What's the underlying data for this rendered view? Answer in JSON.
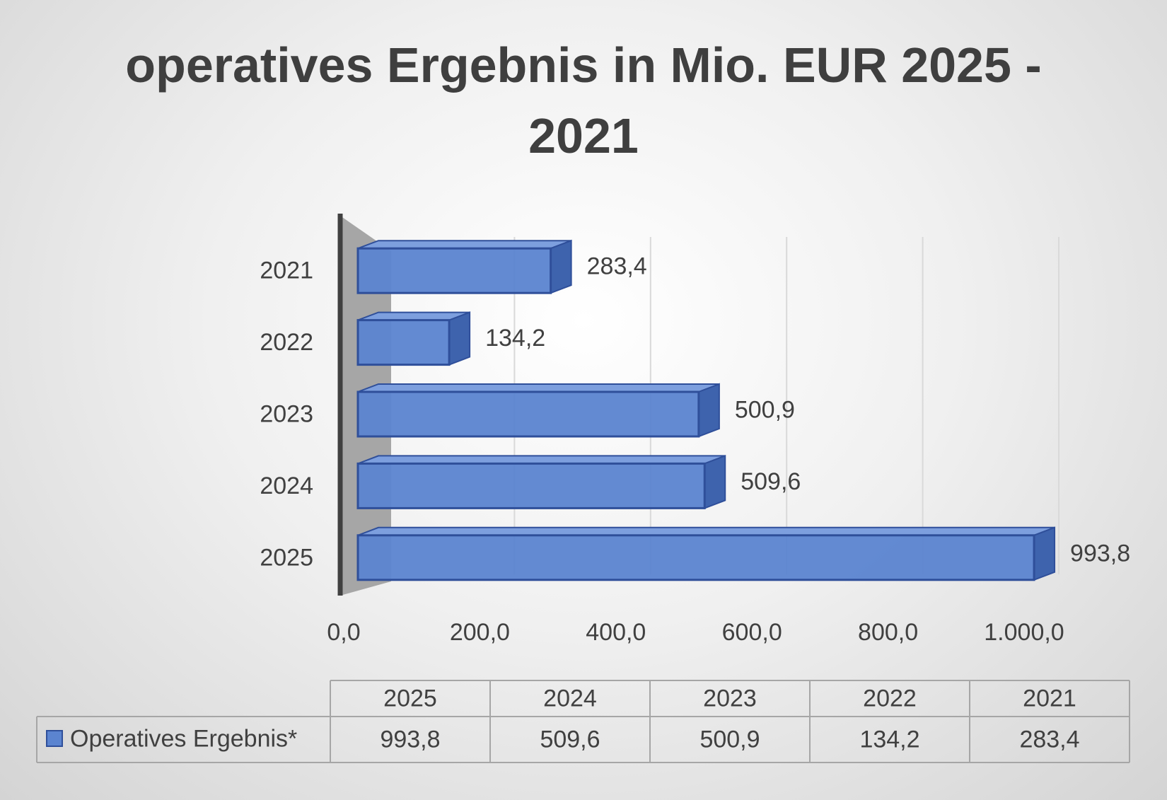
{
  "chart_data": {
    "type": "bar",
    "orientation": "horizontal",
    "title": "operatives Ergebnis in Mio. EUR 2025 - 2021",
    "categories": [
      "2021",
      "2022",
      "2023",
      "2024",
      "2025"
    ],
    "series": [
      {
        "name": "Operatives Ergebnis*",
        "color": "#5b84d0",
        "values": [
          283.4,
          134.2,
          500.9,
          509.6,
          993.8
        ],
        "value_labels": [
          "283,4",
          "134,2",
          "500,9",
          "509,6",
          "993,8"
        ]
      }
    ],
    "xlim": [
      0,
      1000
    ],
    "xticks": [
      {
        "value": 0,
        "label": "0,0"
      },
      {
        "value": 200,
        "label": "200,0"
      },
      {
        "value": 400,
        "label": "400,0"
      },
      {
        "value": 600,
        "label": "600,0"
      },
      {
        "value": 800,
        "label": "800,0"
      },
      {
        "value": 1000,
        "label": "1.000,0"
      }
    ],
    "grid": true,
    "data_table": true
  }
}
